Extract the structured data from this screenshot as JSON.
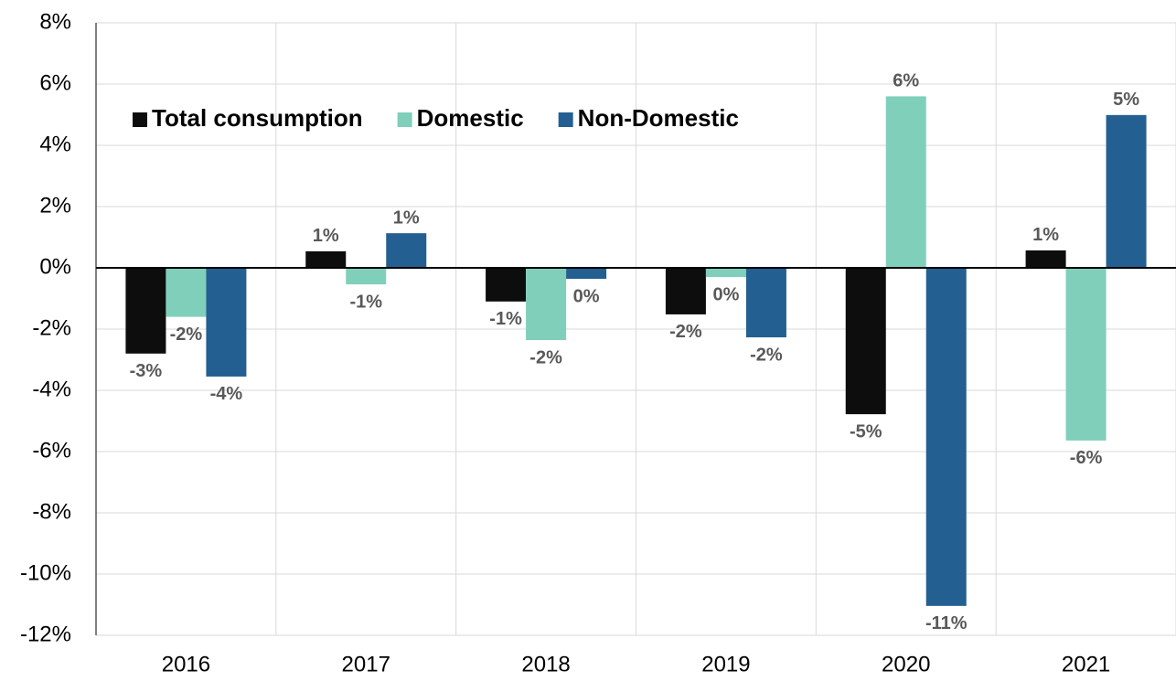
{
  "chart_data": {
    "type": "bar",
    "categories": [
      "2016",
      "2017",
      "2018",
      "2019",
      "2020",
      "2021"
    ],
    "series": [
      {
        "name": "Total consumption",
        "color": "#0d0d0d",
        "values": [
          -2.8,
          0.54,
          -1.1,
          -1.52,
          -4.78,
          0.57
        ],
        "value_labels": [
          "-3%",
          "1%",
          "-1%",
          "-2%",
          "-5%",
          "1%"
        ]
      },
      {
        "name": "Domestic",
        "color": "#7fcfbb",
        "values": [
          -1.6,
          -0.54,
          -2.36,
          -0.3,
          5.6,
          -5.64
        ],
        "value_labels": [
          "-2%",
          "-1%",
          "-2%",
          "0%",
          "6%",
          "-6%"
        ]
      },
      {
        "name": "Non-Domestic",
        "color": "#245f91",
        "values": [
          -3.55,
          1.13,
          -0.36,
          -2.27,
          -11.04,
          4.99
        ],
        "value_labels": [
          "-4%",
          "1%",
          "0%",
          "-2%",
          "-11%",
          "5%"
        ]
      }
    ],
    "ylim": [
      -12,
      8
    ],
    "yticks": [
      {
        "value": -12,
        "label": "-12%"
      },
      {
        "value": -10,
        "label": "-10%"
      },
      {
        "value": -8,
        "label": "-8%"
      },
      {
        "value": -6,
        "label": "-6%"
      },
      {
        "value": -4,
        "label": "-4%"
      },
      {
        "value": -2,
        "label": "-2%"
      },
      {
        "value": 0,
        "label": "0%"
      },
      {
        "value": 2,
        "label": "2%"
      },
      {
        "value": 4,
        "label": "4%"
      },
      {
        "value": 6,
        "label": "6%"
      },
      {
        "value": 8,
        "label": "8%"
      }
    ],
    "grid": true,
    "legend": "top-left"
  }
}
